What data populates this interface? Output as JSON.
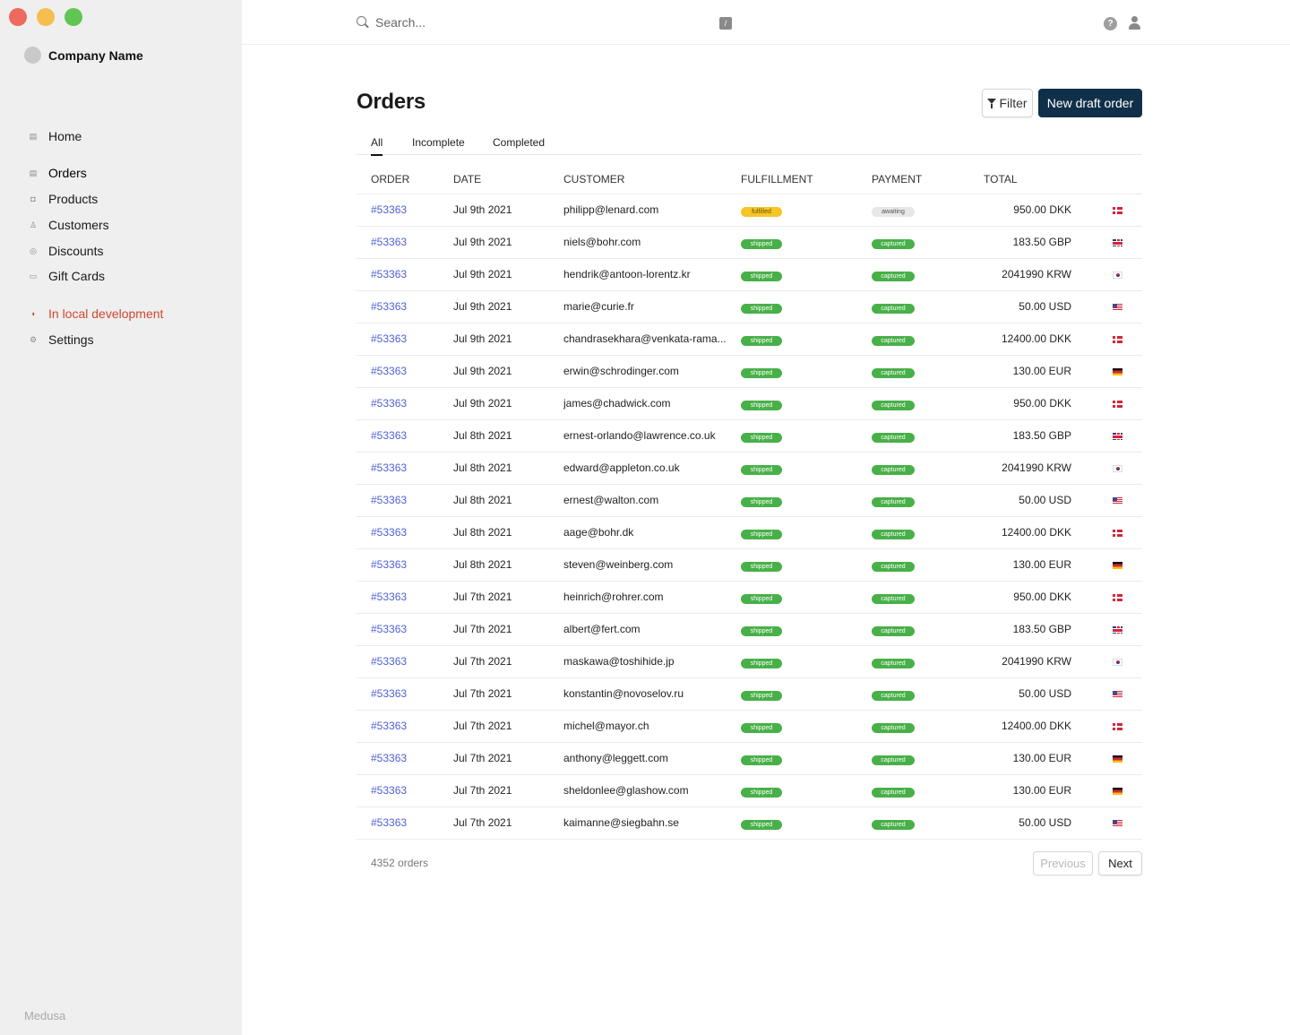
{
  "window": {
    "controls": [
      "close",
      "minimize",
      "maximize"
    ]
  },
  "sidebar": {
    "company": "Company Name",
    "items": [
      {
        "label": "Home",
        "icon": "home-icon"
      },
      {
        "label": "Orders",
        "icon": "orders-icon"
      },
      {
        "label": "Products",
        "icon": "products-icon"
      },
      {
        "label": "Customers",
        "icon": "customers-icon"
      },
      {
        "label": "Discounts",
        "icon": "discounts-icon"
      },
      {
        "label": "Gift Cards",
        "icon": "gift-card-icon"
      },
      {
        "label": "In local development",
        "icon": "dev-icon"
      },
      {
        "label": "Settings",
        "icon": "settings-icon"
      }
    ],
    "brand": "Medusa"
  },
  "topbar": {
    "search_placeholder": "Search...",
    "shortcut": "/",
    "help": "?"
  },
  "main": {
    "title": "Orders",
    "filter_label": "Filter",
    "new_label": "New draft order",
    "tabs": [
      {
        "label": "All",
        "active": true
      },
      {
        "label": "Incomplete",
        "active": false
      },
      {
        "label": "Completed",
        "active": false
      }
    ],
    "columns": [
      "ORDER",
      "DATE",
      "CUSTOMER",
      "FULFILLMENT",
      "PAYMENT",
      "TOTAL"
    ],
    "rows": [
      {
        "order": "#53363",
        "date": "Jul 9th 2021",
        "customer": "philipp@lenard.com",
        "fulfillment": "fulfilled",
        "payment": "awaiting",
        "total": "950.00 DKK",
        "flag": "dk"
      },
      {
        "order": "#53363",
        "date": "Jul 9th 2021",
        "customer": "niels@bohr.com",
        "fulfillment": "shipped",
        "payment": "captured",
        "total": "183.50 GBP",
        "flag": "gb"
      },
      {
        "order": "#53363",
        "date": "Jul 9th 2021",
        "customer": "hendrik@antoon-lorentz.kr",
        "fulfillment": "shipped",
        "payment": "captured",
        "total": "2041990 KRW",
        "flag": "kr"
      },
      {
        "order": "#53363",
        "date": "Jul 9th 2021",
        "customer": "marie@curie.fr",
        "fulfillment": "shipped",
        "payment": "captured",
        "total": "50.00 USD",
        "flag": "us"
      },
      {
        "order": "#53363",
        "date": "Jul 9th 2021",
        "customer": "chandrasekhara@venkata-rama...",
        "fulfillment": "shipped",
        "payment": "captured",
        "total": "12400.00 DKK",
        "flag": "dk"
      },
      {
        "order": "#53363",
        "date": "Jul 9th 2021",
        "customer": "erwin@schrodinger.com",
        "fulfillment": "shipped",
        "payment": "captured",
        "total": "130.00 EUR",
        "flag": "de"
      },
      {
        "order": "#53363",
        "date": "Jul 9th 2021",
        "customer": "james@chadwick.com",
        "fulfillment": "shipped",
        "payment": "captured",
        "total": "950.00 DKK",
        "flag": "dk"
      },
      {
        "order": "#53363",
        "date": "Jul 8th 2021",
        "customer": "ernest-orlando@lawrence.co.uk",
        "fulfillment": "shipped",
        "payment": "captured",
        "total": "183.50 GBP",
        "flag": "gb"
      },
      {
        "order": "#53363",
        "date": "Jul 8th 2021",
        "customer": "edward@appleton.co.uk",
        "fulfillment": "shipped",
        "payment": "captured",
        "total": "2041990 KRW",
        "flag": "kr"
      },
      {
        "order": "#53363",
        "date": "Jul 8th 2021",
        "customer": "ernest@walton.com",
        "fulfillment": "shipped",
        "payment": "captured",
        "total": "50.00 USD",
        "flag": "us"
      },
      {
        "order": "#53363",
        "date": "Jul 8th 2021",
        "customer": "aage@bohr.dk",
        "fulfillment": "shipped",
        "payment": "captured",
        "total": "12400.00 DKK",
        "flag": "dk"
      },
      {
        "order": "#53363",
        "date": "Jul 8th 2021",
        "customer": "steven@weinberg.com",
        "fulfillment": "shipped",
        "payment": "captured",
        "total": "130.00 EUR",
        "flag": "de"
      },
      {
        "order": "#53363",
        "date": "Jul 7th 2021",
        "customer": "heinrich@rohrer.com",
        "fulfillment": "shipped",
        "payment": "captured",
        "total": "950.00 DKK",
        "flag": "dk"
      },
      {
        "order": "#53363",
        "date": "Jul 7th 2021",
        "customer": "albert@fert.com",
        "fulfillment": "shipped",
        "payment": "captured",
        "total": "183.50 GBP",
        "flag": "gb"
      },
      {
        "order": "#53363",
        "date": "Jul 7th 2021",
        "customer": "maskawa@toshihide.jp",
        "fulfillment": "shipped",
        "payment": "captured",
        "total": "2041990 KRW",
        "flag": "kr"
      },
      {
        "order": "#53363",
        "date": "Jul 7th 2021",
        "customer": "konstantin@novoselov.ru",
        "fulfillment": "shipped",
        "payment": "captured",
        "total": "50.00 USD",
        "flag": "us"
      },
      {
        "order": "#53363",
        "date": "Jul 7th 2021",
        "customer": "michel@mayor.ch",
        "fulfillment": "shipped",
        "payment": "captured",
        "total": "12400.00 DKK",
        "flag": "dk"
      },
      {
        "order": "#53363",
        "date": "Jul 7th 2021",
        "customer": "anthony@leggett.com",
        "fulfillment": "shipped",
        "payment": "captured",
        "total": "130.00 EUR",
        "flag": "de"
      },
      {
        "order": "#53363",
        "date": "Jul 7th 2021",
        "customer": "sheldonlee@glashow.com",
        "fulfillment": "shipped",
        "payment": "captured",
        "total": "130.00 EUR",
        "flag": "de"
      },
      {
        "order": "#53363",
        "date": "Jul 7th 2021",
        "customer": "kaimanne@siegbahn.se",
        "fulfillment": "shipped",
        "payment": "captured",
        "total": "50.00 USD",
        "flag": "us"
      }
    ],
    "count_label": "4352 orders",
    "prev_label": "Previous",
    "next_label": "Next"
  }
}
